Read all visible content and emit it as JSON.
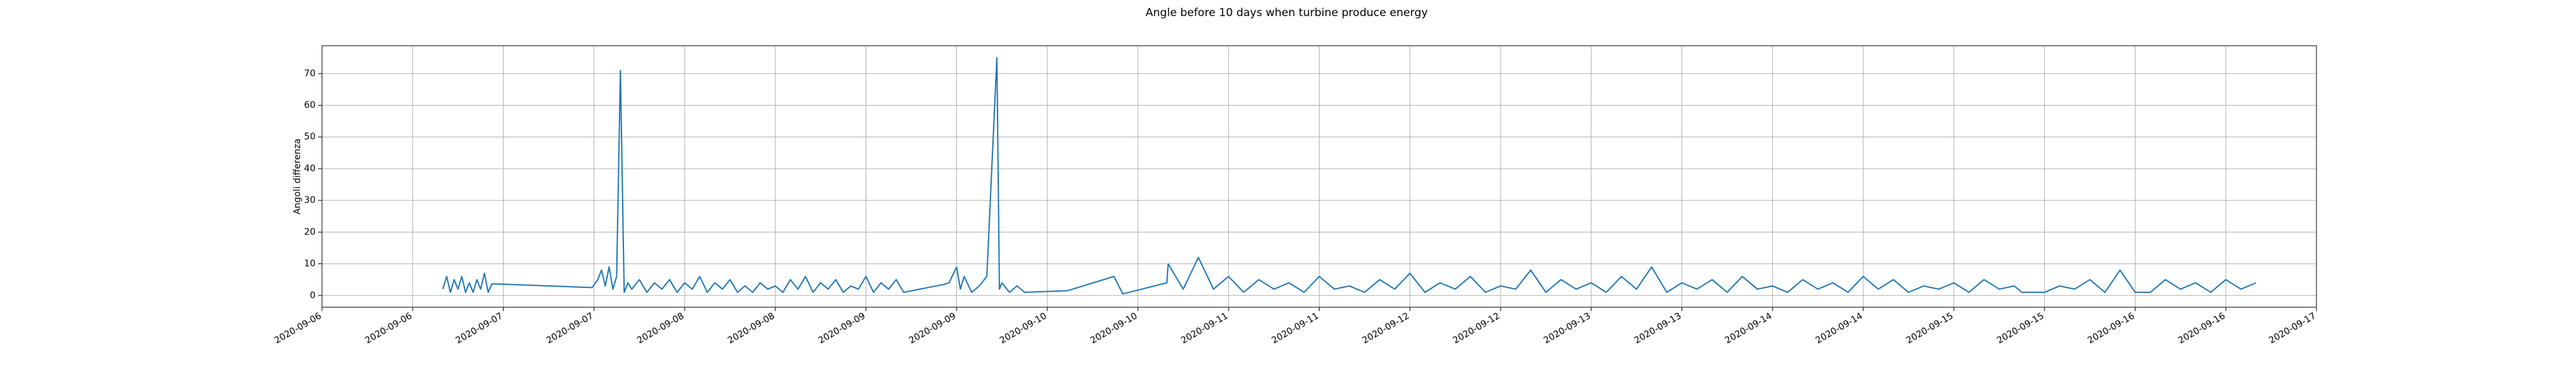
{
  "chart_data": {
    "type": "line",
    "title": "Angle before 10 days when turbine produce energy",
    "y_label": "Angoli differenza",
    "color": "#1f77b4",
    "grid": true,
    "xlim": [
      "2020-09-06 00:00",
      "2020-09-17 00:00"
    ],
    "xticks": [
      {
        "value": "2020-09-06 00:00",
        "label": "2020-09-06"
      },
      {
        "value": "2020-09-06 12:00",
        "label": "2020-09-06"
      },
      {
        "value": "2020-09-07 00:00",
        "label": "2020-09-07"
      },
      {
        "value": "2020-09-07 12:00",
        "label": "2020-09-07"
      },
      {
        "value": "2020-09-08 00:00",
        "label": "2020-09-08"
      },
      {
        "value": "2020-09-08 12:00",
        "label": "2020-09-08"
      },
      {
        "value": "2020-09-09 00:00",
        "label": "2020-09-09"
      },
      {
        "value": "2020-09-09 12:00",
        "label": "2020-09-09"
      },
      {
        "value": "2020-09-10 00:00",
        "label": "2020-09-10"
      },
      {
        "value": "2020-09-10 12:00",
        "label": "2020-09-10"
      },
      {
        "value": "2020-09-11 00:00",
        "label": "2020-09-11"
      },
      {
        "value": "2020-09-11 12:00",
        "label": "2020-09-11"
      },
      {
        "value": "2020-09-12 00:00",
        "label": "2020-09-12"
      },
      {
        "value": "2020-09-12 12:00",
        "label": "2020-09-12"
      },
      {
        "value": "2020-09-13 00:00",
        "label": "2020-09-13"
      },
      {
        "value": "2020-09-13 12:00",
        "label": "2020-09-13"
      },
      {
        "value": "2020-09-14 00:00",
        "label": "2020-09-14"
      },
      {
        "value": "2020-09-14 12:00",
        "label": "2020-09-14"
      },
      {
        "value": "2020-09-15 00:00",
        "label": "2020-09-15"
      },
      {
        "value": "2020-09-15 12:00",
        "label": "2020-09-15"
      },
      {
        "value": "2020-09-16 00:00",
        "label": "2020-09-16"
      },
      {
        "value": "2020-09-16 12:00",
        "label": "2020-09-16"
      },
      {
        "value": "2020-09-17 00:00",
        "label": "2020-09-17"
      }
    ],
    "ylim": [
      -3.7,
      78.8
    ],
    "yticks": [
      0,
      10,
      20,
      30,
      40,
      50,
      60,
      70
    ],
    "x": [
      "2020-09-06 16:00",
      "2020-09-06 16:30",
      "2020-09-06 17:00",
      "2020-09-06 17:30",
      "2020-09-06 18:00",
      "2020-09-06 18:30",
      "2020-09-06 19:00",
      "2020-09-06 19:30",
      "2020-09-06 20:00",
      "2020-09-06 20:30",
      "2020-09-06 21:00",
      "2020-09-06 21:30",
      "2020-09-06 22:00",
      "2020-09-06 22:30",
      "2020-09-07 11:45",
      "2020-09-07 12:30",
      "2020-09-07 13:00",
      "2020-09-07 13:30",
      "2020-09-07 14:00",
      "2020-09-07 14:30",
      "2020-09-07 15:00",
      "2020-09-07 15:30",
      "2020-09-07 16:00",
      "2020-09-07 16:30",
      "2020-09-07 17:00",
      "2020-09-07 18:00",
      "2020-09-07 19:00",
      "2020-09-07 20:00",
      "2020-09-07 21:00",
      "2020-09-07 22:00",
      "2020-09-07 23:00",
      "2020-09-08 00:00",
      "2020-09-08 01:00",
      "2020-09-08 02:00",
      "2020-09-08 03:00",
      "2020-09-08 04:00",
      "2020-09-08 05:00",
      "2020-09-08 06:00",
      "2020-09-08 07:00",
      "2020-09-08 08:00",
      "2020-09-08 09:00",
      "2020-09-08 10:00",
      "2020-09-08 11:00",
      "2020-09-08 12:00",
      "2020-09-08 13:00",
      "2020-09-08 14:00",
      "2020-09-08 15:00",
      "2020-09-08 16:00",
      "2020-09-08 17:00",
      "2020-09-08 18:00",
      "2020-09-08 19:00",
      "2020-09-08 20:00",
      "2020-09-08 21:00",
      "2020-09-08 22:00",
      "2020-09-08 23:00",
      "2020-09-09 00:00",
      "2020-09-09 01:00",
      "2020-09-09 02:00",
      "2020-09-09 03:00",
      "2020-09-09 04:00",
      "2020-09-09 05:00",
      "2020-09-09 10:20",
      "2020-09-09 11:00",
      "2020-09-09 12:00",
      "2020-09-09 12:30",
      "2020-09-09 13:00",
      "2020-09-09 14:00",
      "2020-09-09 15:00",
      "2020-09-09 16:00",
      "2020-09-09 17:20",
      "2020-09-09 17:40",
      "2020-09-09 18:00",
      "2020-09-09 19:00",
      "2020-09-09 20:00",
      "2020-09-09 21:00",
      "2020-09-10 02:40",
      "2020-09-10 08:50",
      "2020-09-10 10:00",
      "2020-09-10 15:50",
      "2020-09-10 16:00",
      "2020-09-10 18:00",
      "2020-09-10 20:00",
      "2020-09-10 22:00",
      "2020-09-11 00:00",
      "2020-09-11 02:00",
      "2020-09-11 04:00",
      "2020-09-11 06:00",
      "2020-09-11 08:00",
      "2020-09-11 10:00",
      "2020-09-11 12:00",
      "2020-09-11 14:00",
      "2020-09-11 16:00",
      "2020-09-11 18:00",
      "2020-09-11 20:00",
      "2020-09-11 22:00",
      "2020-09-12 00:00",
      "2020-09-12 02:00",
      "2020-09-12 04:00",
      "2020-09-12 06:00",
      "2020-09-12 08:00",
      "2020-09-12 10:00",
      "2020-09-12 12:00",
      "2020-09-12 14:00",
      "2020-09-12 16:00",
      "2020-09-12 18:00",
      "2020-09-12 20:00",
      "2020-09-12 22:00",
      "2020-09-13 00:00",
      "2020-09-13 02:00",
      "2020-09-13 04:00",
      "2020-09-13 06:00",
      "2020-09-13 08:00",
      "2020-09-13 10:00",
      "2020-09-13 12:00",
      "2020-09-13 14:00",
      "2020-09-13 16:00",
      "2020-09-13 18:00",
      "2020-09-13 20:00",
      "2020-09-13 22:00",
      "2020-09-14 00:00",
      "2020-09-14 02:00",
      "2020-09-14 04:00",
      "2020-09-14 06:00",
      "2020-09-14 08:00",
      "2020-09-14 10:00",
      "2020-09-14 12:00",
      "2020-09-14 14:00",
      "2020-09-14 16:00",
      "2020-09-14 18:00",
      "2020-09-14 20:00",
      "2020-09-14 22:00",
      "2020-09-15 00:00",
      "2020-09-15 02:00",
      "2020-09-15 04:00",
      "2020-09-15 06:00",
      "2020-09-15 08:00",
      "2020-09-15 09:00",
      "2020-09-15 12:00",
      "2020-09-15 14:00",
      "2020-09-15 16:00",
      "2020-09-15 18:00",
      "2020-09-15 20:00",
      "2020-09-15 22:00",
      "2020-09-16 00:00",
      "2020-09-16 02:00",
      "2020-09-16 04:00",
      "2020-09-16 06:00",
      "2020-09-16 08:00",
      "2020-09-16 10:00",
      "2020-09-16 12:00",
      "2020-09-16 14:00",
      "2020-09-16 16:00"
    ],
    "values": [
      2,
      6,
      1,
      5,
      2,
      6,
      1,
      4,
      1,
      5,
      2,
      7,
      1,
      3.7,
      2.5,
      5,
      8,
      3,
      9,
      2,
      6,
      71,
      1,
      4,
      2,
      5,
      1,
      4,
      2,
      5,
      1,
      4,
      2,
      6,
      1,
      4,
      2,
      5,
      1,
      3,
      1,
      4,
      2,
      3,
      1,
      5,
      2,
      6,
      1,
      4,
      2,
      5,
      1,
      3,
      2,
      6,
      1,
      4,
      2,
      5,
      1,
      3.5,
      4,
      9,
      2,
      6,
      1,
      3,
      6,
      75,
      2,
      4,
      1,
      3,
      1,
      1.5,
      6,
      0.5,
      4,
      10,
      2,
      12,
      2,
      6,
      1,
      5,
      2,
      4,
      1,
      6,
      2,
      3,
      1,
      5,
      2,
      7,
      1,
      4,
      2,
      6,
      1,
      3,
      2,
      8,
      1,
      5,
      2,
      4,
      1,
      6,
      2,
      9,
      1,
      4,
      2,
      5,
      1,
      6,
      2,
      3,
      1,
      5,
      2,
      4,
      1,
      6,
      2,
      5,
      1,
      3,
      2,
      4,
      1,
      5,
      2,
      3,
      1,
      1,
      3,
      2,
      5,
      1,
      8,
      1,
      1,
      5,
      2,
      4,
      1,
      5,
      2,
      4
    ]
  }
}
